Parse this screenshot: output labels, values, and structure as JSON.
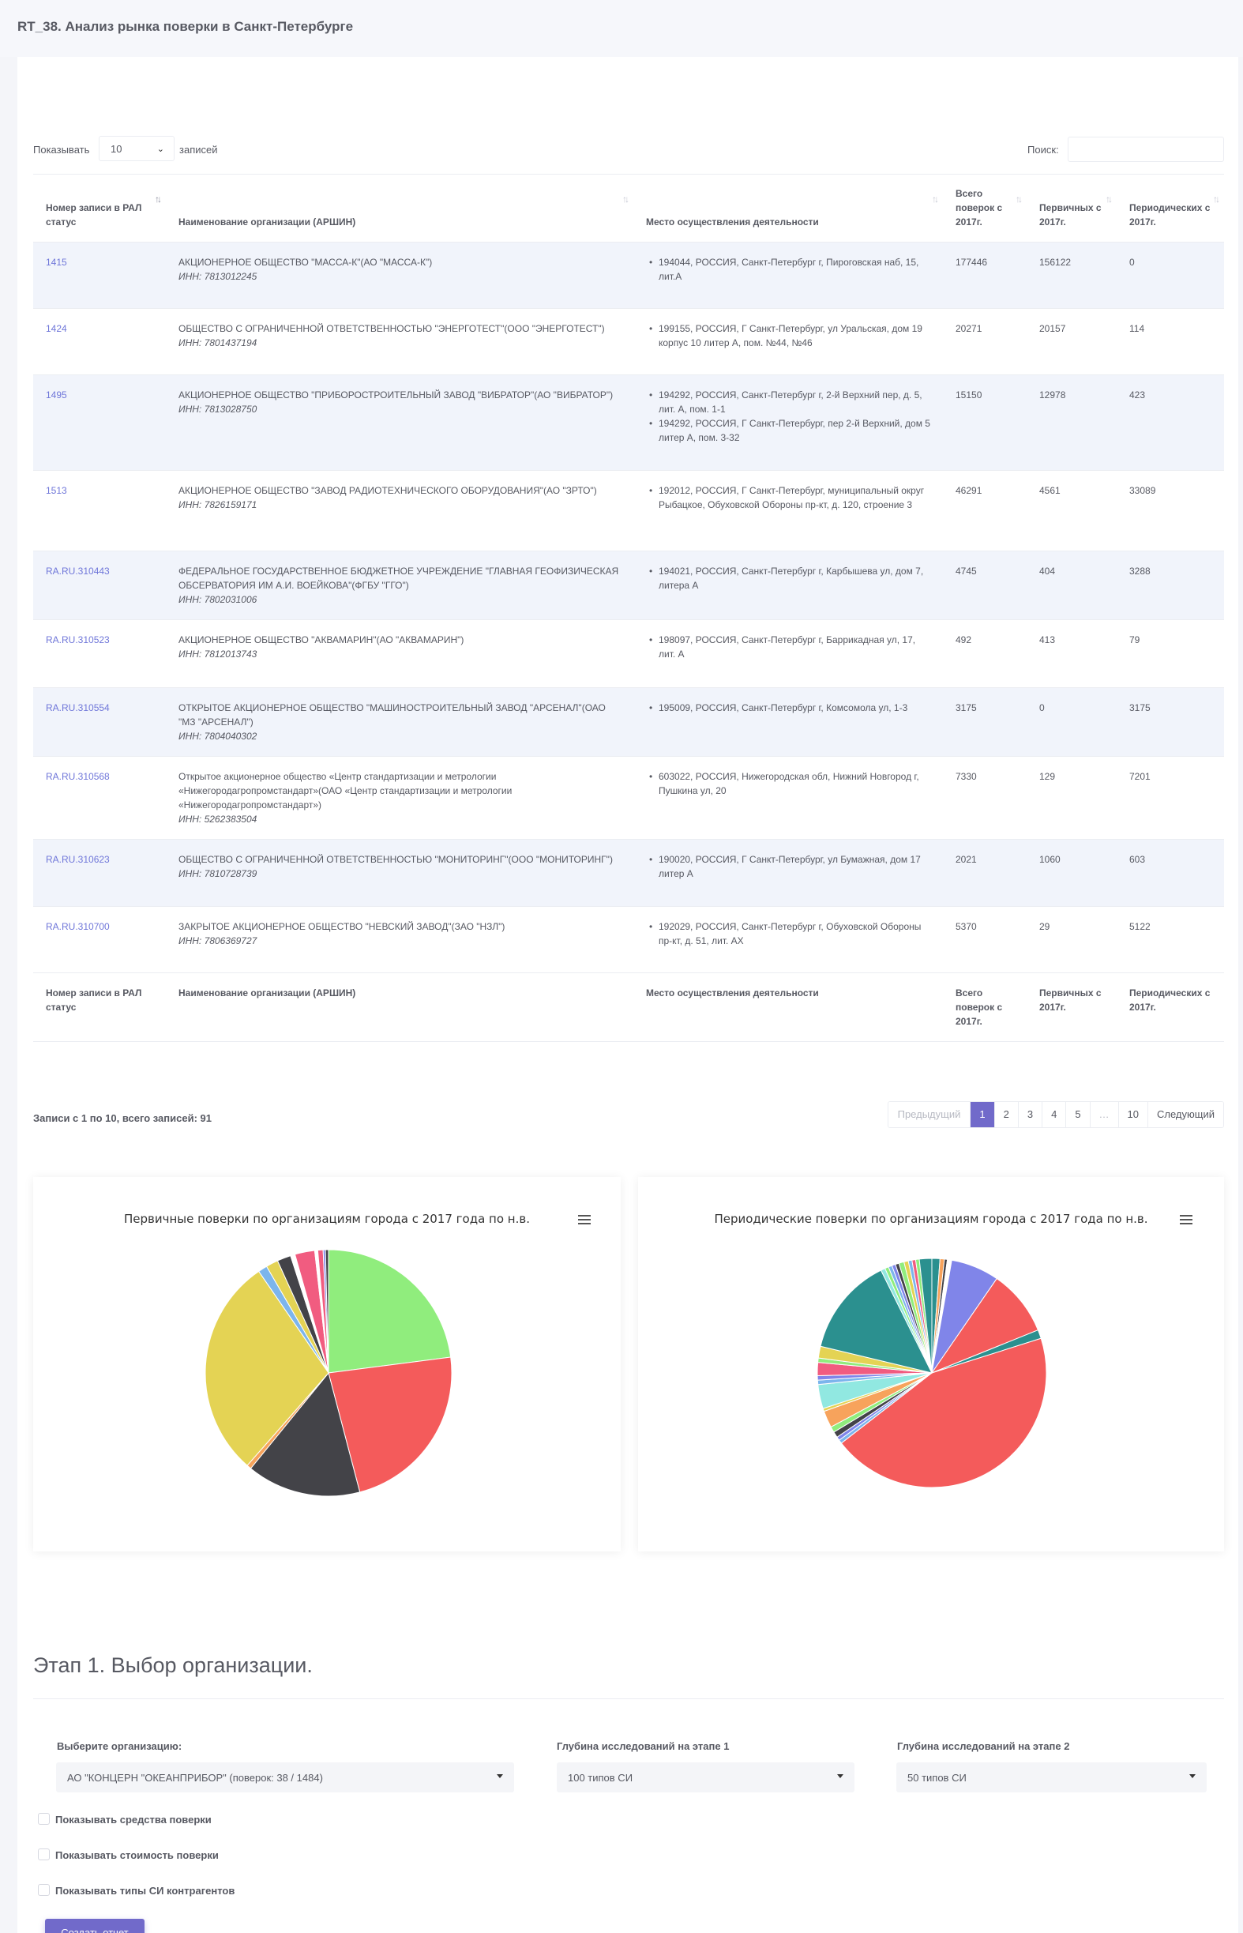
{
  "header": {
    "title": "RT_38. Анализ рынка поверки в Санкт-Петербурге"
  },
  "table_controls": {
    "show_label": "Показывать",
    "page_size": "10",
    "show_suffix": "записей",
    "search_label": "Поиск:",
    "search_value": ""
  },
  "table": {
    "columns": [
      "Номер записи в РАЛ статус",
      "Наименование организации (АРШИН)",
      "Место осуществления деятельности",
      "Всего поверок с 2017г.",
      "Первичных с 2017г.",
      "Периодических с 2017г."
    ],
    "rows": [
      {
        "id": "1415",
        "name": "АКЦИОНЕРНОЕ ОБЩЕСТВО \"МАССА-К\"(АО \"МАССА-К\")",
        "inn": "ИНН: 7813012245",
        "addresses": [
          "194044, РОССИЯ, Санкт-Петербург г, Пироговская наб, 15, лит.А"
        ],
        "total": "177446",
        "primary": "156122",
        "periodic": "0"
      },
      {
        "id": "1424",
        "name": "ОБЩЕСТВО С ОГРАНИЧЕННОЙ ОТВЕТСТВЕННОСТЬЮ \"ЭНЕРГОТЕСТ\"(ООО \"ЭНЕРГОТЕСТ\")",
        "inn": "ИНН: 7801437194",
        "addresses": [
          "199155, РОССИЯ, Г Санкт-Петербург, ул Уральская, дом 19 корпус 10 литер А, пом. №44, №46"
        ],
        "total": "20271",
        "primary": "20157",
        "periodic": "114"
      },
      {
        "id": "1495",
        "name": "АКЦИОНЕРНОЕ ОБЩЕСТВО \"ПРИБОРОСТРОИТЕЛЬНЫЙ ЗАВОД \"ВИБРАТОР\"(АО \"ВИБРАТОР\")",
        "inn": "ИНН: 7813028750",
        "addresses": [
          "194292, РОССИЯ, Санкт-Петербург г, 2-й Верхний пер, д. 5, лит. А, пом. 1-1",
          "194292, РОССИЯ, Г Санкт-Петербург, пер 2-й Верхний, дом 5 литер А, пом. 3-32"
        ],
        "total": "15150",
        "primary": "12978",
        "periodic": "423"
      },
      {
        "id": "1513",
        "name": "АКЦИОНЕРНОЕ ОБЩЕСТВО \"ЗАВОД РАДИОТЕХНИЧЕСКОГО ОБОРУДОВАНИЯ\"(АО \"ЗРТО\")",
        "inn": "ИНН: 7826159171",
        "addresses": [
          "192012, РОССИЯ, Г Санкт-Петербург, муниципальный округ Рыбацкое, Обуховской Обороны пр-кт, д. 120, строение 3"
        ],
        "total": "46291",
        "primary": "4561",
        "periodic": "33089"
      },
      {
        "id": "RA.RU.310443",
        "name": "ФЕДЕРАЛЬНОЕ ГОСУДАРСТВЕННОЕ БЮДЖЕТНОЕ УЧРЕЖДЕНИЕ \"ГЛАВНАЯ ГЕОФИЗИЧЕСКАЯ ОБСЕРВАТОРИЯ ИМ А.И. ВОЕЙКОВА\"(ФГБУ \"ГГО\")",
        "inn": "ИНН: 7802031006",
        "addresses": [
          "194021, РОССИЯ, Санкт-Петербург г, Карбышева ул, дом 7, литера А"
        ],
        "total": "4745",
        "primary": "404",
        "periodic": "3288"
      },
      {
        "id": "RA.RU.310523",
        "name": "АКЦИОНЕРНОЕ ОБЩЕСТВО \"АКВАМАРИН\"(АО \"АКВАМАРИН\")",
        "inn": "ИНН: 7812013743",
        "addresses": [
          "198097, РОССИЯ, Санкт-Петербург г, Баррикадная ул, 17, лит. А"
        ],
        "total": "492",
        "primary": "413",
        "periodic": "79"
      },
      {
        "id": "RA.RU.310554",
        "name": "ОТКРЫТОЕ АКЦИОНЕРНОЕ ОБЩЕСТВО \"МАШИНОСТРОИТЕЛЬНЫЙ ЗАВОД \"АРСЕНАЛ\"(ОАО \"МЗ \"АРСЕНАЛ\")",
        "inn": "ИНН: 7804040302",
        "addresses": [
          "195009, РОССИЯ, Санкт-Петербург г, Комсомола ул, 1-3"
        ],
        "total": "3175",
        "primary": "0",
        "periodic": "3175"
      },
      {
        "id": "RA.RU.310568",
        "name": "Открытое акционерное общество «Центр стандартизации и метрологии «Нижегородагропромстандарт»(ОАО «Центр стандартизации и метрологии «Нижегородагропромстандарт»)",
        "inn": "ИНН: 5262383504",
        "addresses": [
          "603022, РОССИЯ, Нижегородская обл, Нижний Новгород г, Пушкина ул, 20"
        ],
        "total": "7330",
        "primary": "129",
        "periodic": "7201"
      },
      {
        "id": "RA.RU.310623",
        "name": "ОБЩЕСТВО С ОГРАНИЧЕННОЙ ОТВЕТСТВЕННОСТЬЮ \"МОНИТОРИНГ\"(ООО \"МОНИТОРИНГ\")",
        "inn": "ИНН: 7810728739",
        "addresses": [
          "190020, РОССИЯ, Г Санкт-Петербург, ул Бумажная, дом 17 литер А"
        ],
        "total": "2021",
        "primary": "1060",
        "periodic": "603"
      },
      {
        "id": "RA.RU.310700",
        "name": "ЗАКРЫТОЕ АКЦИОНЕРНОЕ ОБЩЕСТВО \"НЕВСКИЙ ЗАВОД\"(ЗАО \"НЗЛ\")",
        "inn": "ИНН: 7806369727",
        "addresses": [
          "192029, РОССИЯ, Санкт-Петербург г, Обуховской Обороны пр-кт, д. 51, лит. АХ"
        ],
        "total": "5370",
        "primary": "29",
        "periodic": "5122"
      }
    ]
  },
  "table_info": "Записи с 1 по 10, всего записей: 91",
  "pagination": [
    "Предыдущий",
    "1",
    "2",
    "3",
    "4",
    "5",
    "…",
    "10",
    "Следующий"
  ],
  "pagination_active": "1",
  "chart_data": [
    {
      "type": "pie",
      "title": "Первичные поверки по организациям города с 2017 года по н.в.",
      "slices": [
        {
          "value": 23.0,
          "color": "#90ed7d"
        },
        {
          "value": 23.0,
          "color": "#f45b5b"
        },
        {
          "value": 15.0,
          "color": "#434348"
        },
        {
          "value": 0.6,
          "color": "#f7a35c"
        },
        {
          "value": 29.0,
          "color": "#e4d354"
        },
        {
          "value": 1.2,
          "color": "#7cb5ec"
        },
        {
          "value": 1.6,
          "color": "#e4d354"
        },
        {
          "value": 1.8,
          "color": "#434348"
        },
        {
          "value": 0.6,
          "color": "#ffffff"
        },
        {
          "value": 2.6,
          "color": "#f15c80"
        },
        {
          "value": 0.4,
          "color": "#ffffff"
        },
        {
          "value": 0.7,
          "color": "#f15c80"
        },
        {
          "value": 0.3,
          "color": "#8085e9"
        },
        {
          "value": 0.4,
          "color": "#434348"
        }
      ]
    },
    {
      "type": "pie",
      "title": "Периодические поверки по организациям города с 2017 года по н.в.",
      "slices": [
        {
          "value": 1.1,
          "color": "#2b908f"
        },
        {
          "value": 0.6,
          "color": "#f7a35c"
        },
        {
          "value": 0.4,
          "color": "#434348"
        },
        {
          "value": 0.6,
          "color": "#ffffff"
        },
        {
          "value": 6.6,
          "color": "#8085e9"
        },
        {
          "value": 9.0,
          "color": "#f45b5b"
        },
        {
          "value": 1.2,
          "color": "#2b908f"
        },
        {
          "value": 43.0,
          "color": "#f45b5b"
        },
        {
          "value": 0.5,
          "color": "#7cb5ec"
        },
        {
          "value": 0.5,
          "color": "#8085e9"
        },
        {
          "value": 0.8,
          "color": "#434348"
        },
        {
          "value": 0.8,
          "color": "#90ed7d"
        },
        {
          "value": 2.3,
          "color": "#f7a35c"
        },
        {
          "value": 0.4,
          "color": "#e4d354"
        },
        {
          "value": 3.3,
          "color": "#91e8e1"
        },
        {
          "value": 0.6,
          "color": "#7cb5ec"
        },
        {
          "value": 0.6,
          "color": "#8085e9"
        },
        {
          "value": 1.8,
          "color": "#f15c80"
        },
        {
          "value": 0.6,
          "color": "#90ed7d"
        },
        {
          "value": 1.6,
          "color": "#e4d354"
        },
        {
          "value": 13.5,
          "color": "#2b908f"
        },
        {
          "value": 0.6,
          "color": "#91e8e1"
        },
        {
          "value": 0.5,
          "color": "#90ed7d"
        },
        {
          "value": 0.5,
          "color": "#7cb5ec"
        },
        {
          "value": 0.5,
          "color": "#8085e9"
        },
        {
          "value": 0.5,
          "color": "#434348"
        },
        {
          "value": 0.7,
          "color": "#90ed7d"
        },
        {
          "value": 0.6,
          "color": "#e4d354"
        },
        {
          "value": 0.5,
          "color": "#7cb5ec"
        },
        {
          "value": 0.5,
          "color": "#f15c80"
        },
        {
          "value": 0.5,
          "color": "#90ed7d"
        },
        {
          "value": 1.7,
          "color": "#2b908f"
        }
      ]
    }
  ],
  "step1": {
    "title": "Этап 1. Выбор организации.",
    "org_label": "Выберите организацию:",
    "org_value": "АО \"КОНЦЕРН \"ОКЕАНПРИБОР\" (поверок: 38 / 1484)",
    "depth1_label": "Глубина исследований на этапе 1",
    "depth1_value": "100 типов СИ",
    "depth2_label": "Глубина исследований на этапе 2",
    "depth2_value": "50 типов СИ",
    "checkboxes": [
      "Показывать средства поверки",
      "Показывать стоимость поверки",
      "Показывать типы СИ контрагентов"
    ],
    "submit_label": "Создать отчет"
  },
  "colors": {
    "accent": "#716aca",
    "link": "#6f76d9",
    "row_stripe": "#f1f4fb"
  }
}
